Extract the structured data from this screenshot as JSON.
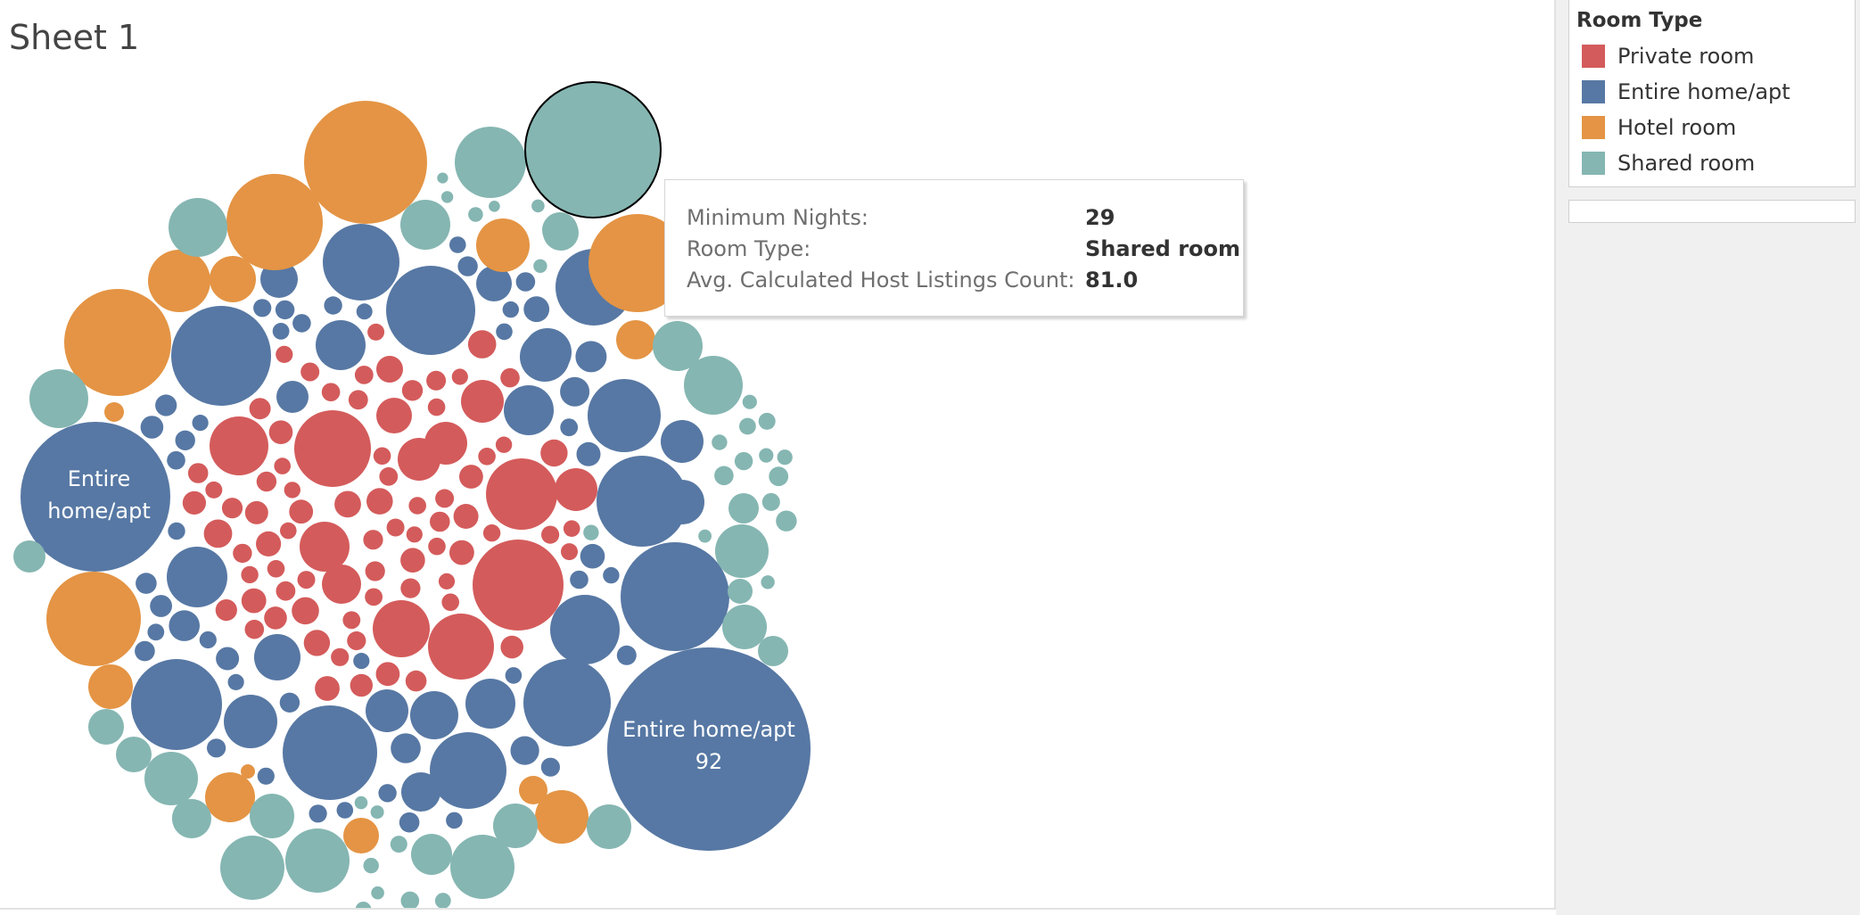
{
  "sheet": {
    "title": "Sheet 1"
  },
  "legend": {
    "title": "Room Type",
    "items": [
      {
        "label": "Private room",
        "color": "#D45B5B"
      },
      {
        "label": "Entire home/apt",
        "color": "#5778A4"
      },
      {
        "label": "Hotel room",
        "color": "#E49444"
      },
      {
        "label": "Shared room",
        "color": "#85B6B2"
      }
    ]
  },
  "tooltip": {
    "rows": [
      {
        "label": "Minimum Nights:",
        "value": "29"
      },
      {
        "label": "Room Type:",
        "value": "Shared room"
      },
      {
        "label": "Avg. Calculated Host Listings Count:",
        "value": "81.0"
      }
    ]
  },
  "chart_data": {
    "type": "packed-bubble",
    "title": "Sheet 1",
    "color_field": "Room Type",
    "size_field": "Avg. Calculated Host Listings Count",
    "category_colors": {
      "Private room": "#D45B5B",
      "Entire home/apt": "#5778A4",
      "Hotel room": "#E49444",
      "Shared room": "#85B6B2"
    },
    "labeled_bubbles": [
      {
        "room_type": "Entire home/apt",
        "lines": [
          "Entire home/apt",
          "92"
        ]
      },
      {
        "room_type": "Entire home/apt",
        "lines": [
          "Entire",
          "home/apt"
        ]
      }
    ],
    "highlighted_bubble": {
      "minimum_nights": 29,
      "room_type": "Shared room",
      "avg_host_listings": 81.0
    }
  }
}
